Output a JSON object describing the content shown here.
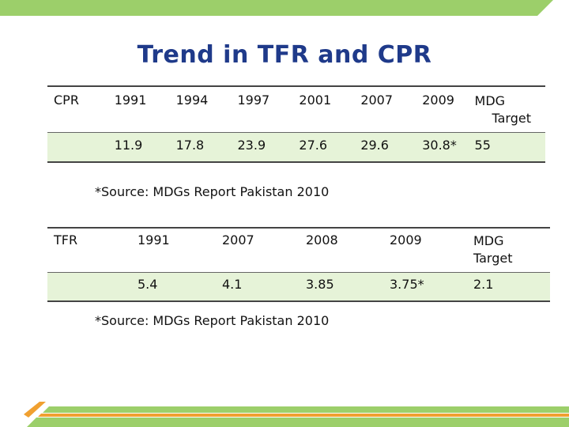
{
  "title": "Trend in TFR and CPR",
  "colors": {
    "title": "#1f3a8a",
    "band_green": "#9ccf6a",
    "row_fill": "#e6f3d8",
    "accent_orange": "#f0a030"
  },
  "cpr_table": {
    "label": "CPR",
    "headers": [
      "1991",
      "1994",
      "1997",
      "2001",
      "2007",
      "2009",
      "MDG",
      "Target"
    ],
    "values": [
      "11.9",
      "17.8",
      "23.9",
      "27.6",
      "29.6",
      "30.8*",
      "55"
    ]
  },
  "cpr_source": "*Source: MDGs Report Pakistan 2010",
  "tfr_table": {
    "label": "TFR",
    "headers": [
      "1991",
      "2007",
      "2008",
      "2009",
      "MDG",
      "Target"
    ],
    "values": [
      "5.4",
      "4.1",
      "3.85",
      "3.75*",
      "2.1"
    ]
  },
  "tfr_source": "*Source: MDGs Report Pakistan 2010"
}
